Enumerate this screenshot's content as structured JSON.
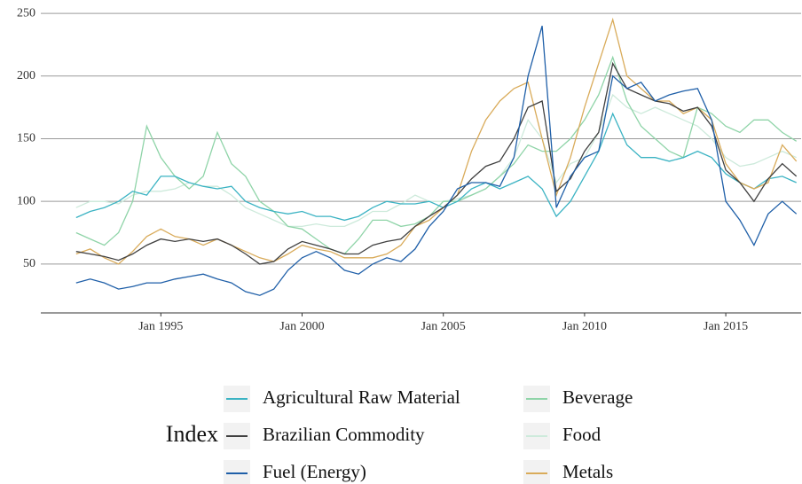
{
  "chart_data": {
    "type": "line",
    "x": [
      "1992-01",
      "1992-07",
      "1993-01",
      "1993-07",
      "1994-01",
      "1994-07",
      "1995-01",
      "1995-07",
      "1996-01",
      "1996-07",
      "1997-01",
      "1997-07",
      "1998-01",
      "1998-07",
      "1999-01",
      "1999-07",
      "2000-01",
      "2000-07",
      "2001-01",
      "2001-07",
      "2002-01",
      "2002-07",
      "2003-01",
      "2003-07",
      "2004-01",
      "2004-07",
      "2005-01",
      "2005-07",
      "2006-01",
      "2006-07",
      "2007-01",
      "2007-07",
      "2008-01",
      "2008-07",
      "2009-01",
      "2009-07",
      "2010-01",
      "2010-07",
      "2011-01",
      "2011-07",
      "2012-01",
      "2012-07",
      "2013-01",
      "2013-07",
      "2014-01",
      "2014-07",
      "2015-01",
      "2015-07",
      "2016-01",
      "2016-07",
      "2017-01",
      "2017-07"
    ],
    "series": [
      {
        "name": "Agricultural Raw Material",
        "color": "#3bb3c3",
        "values": [
          87,
          92,
          95,
          100,
          108,
          105,
          120,
          120,
          115,
          112,
          110,
          112,
          100,
          95,
          92,
          90,
          92,
          88,
          88,
          85,
          88,
          95,
          100,
          98,
          98,
          100,
          95,
          100,
          110,
          115,
          110,
          115,
          120,
          110,
          88,
          100,
          120,
          140,
          170,
          145,
          135,
          135,
          132,
          135,
          140,
          135,
          122,
          115,
          110,
          118,
          120,
          115
        ]
      },
      {
        "name": "Brazilian Commodity",
        "color": "#404040",
        "values": [
          60,
          58,
          56,
          53,
          58,
          65,
          70,
          68,
          70,
          68,
          70,
          65,
          58,
          50,
          52,
          62,
          68,
          65,
          62,
          58,
          58,
          65,
          68,
          70,
          80,
          88,
          95,
          105,
          118,
          128,
          132,
          150,
          175,
          180,
          108,
          118,
          140,
          155,
          210,
          190,
          185,
          180,
          178,
          172,
          175,
          160,
          125,
          115,
          100,
          118,
          130,
          120
        ]
      },
      {
        "name": "Fuel (Energy)",
        "color": "#1f5fa8",
        "values": [
          35,
          38,
          35,
          30,
          32,
          35,
          35,
          38,
          40,
          42,
          38,
          35,
          28,
          25,
          30,
          45,
          55,
          60,
          55,
          45,
          42,
          50,
          55,
          52,
          62,
          80,
          92,
          110,
          115,
          115,
          112,
          135,
          200,
          240,
          95,
          120,
          135,
          140,
          200,
          190,
          195,
          180,
          185,
          188,
          190,
          165,
          100,
          85,
          65,
          90,
          100,
          90
        ]
      },
      {
        "name": "Beverage",
        "color": "#8fd4a8",
        "values": [
          75,
          70,
          65,
          75,
          100,
          160,
          135,
          120,
          110,
          120,
          155,
          130,
          120,
          100,
          92,
          80,
          78,
          70,
          62,
          58,
          70,
          85,
          85,
          80,
          82,
          88,
          100,
          100,
          105,
          110,
          120,
          130,
          145,
          140,
          140,
          150,
          165,
          185,
          215,
          180,
          160,
          150,
          140,
          135,
          175,
          170,
          160,
          155,
          165,
          165,
          155,
          148
        ]
      },
      {
        "name": "Food",
        "color": "#cdeadb",
        "values": [
          95,
          100,
          100,
          98,
          105,
          108,
          108,
          110,
          115,
          112,
          112,
          105,
          95,
          90,
          85,
          80,
          80,
          82,
          80,
          80,
          85,
          92,
          92,
          98,
          105,
          100,
          100,
          102,
          105,
          110,
          120,
          135,
          165,
          150,
          115,
          130,
          135,
          155,
          185,
          175,
          170,
          175,
          170,
          165,
          160,
          150,
          135,
          128,
          130,
          135,
          140,
          135
        ]
      },
      {
        "name": "Metals",
        "color": "#d9ab5a",
        "values": [
          58,
          62,
          55,
          50,
          60,
          72,
          78,
          72,
          70,
          65,
          70,
          65,
          60,
          55,
          52,
          58,
          65,
          62,
          60,
          55,
          55,
          55,
          58,
          65,
          80,
          85,
          95,
          105,
          140,
          165,
          180,
          190,
          195,
          150,
          105,
          135,
          175,
          210,
          245,
          200,
          190,
          180,
          180,
          170,
          175,
          165,
          130,
          115,
          110,
          115,
          145,
          132
        ]
      }
    ],
    "xlim": [
      "1990-10",
      "2017-09"
    ],
    "xticks": [
      {
        "value": "1995-01",
        "label": "Jan 1995"
      },
      {
        "value": "2000-01",
        "label": "Jan 2000"
      },
      {
        "value": "2005-01",
        "label": "Jan 2005"
      },
      {
        "value": "2010-01",
        "label": "Jan 2010"
      },
      {
        "value": "2015-01",
        "label": "Jan 2015"
      }
    ],
    "ylim": [
      11,
      255
    ],
    "yticks": [
      50,
      100,
      150,
      200,
      250
    ],
    "grid": true,
    "legend_title": "Index"
  }
}
